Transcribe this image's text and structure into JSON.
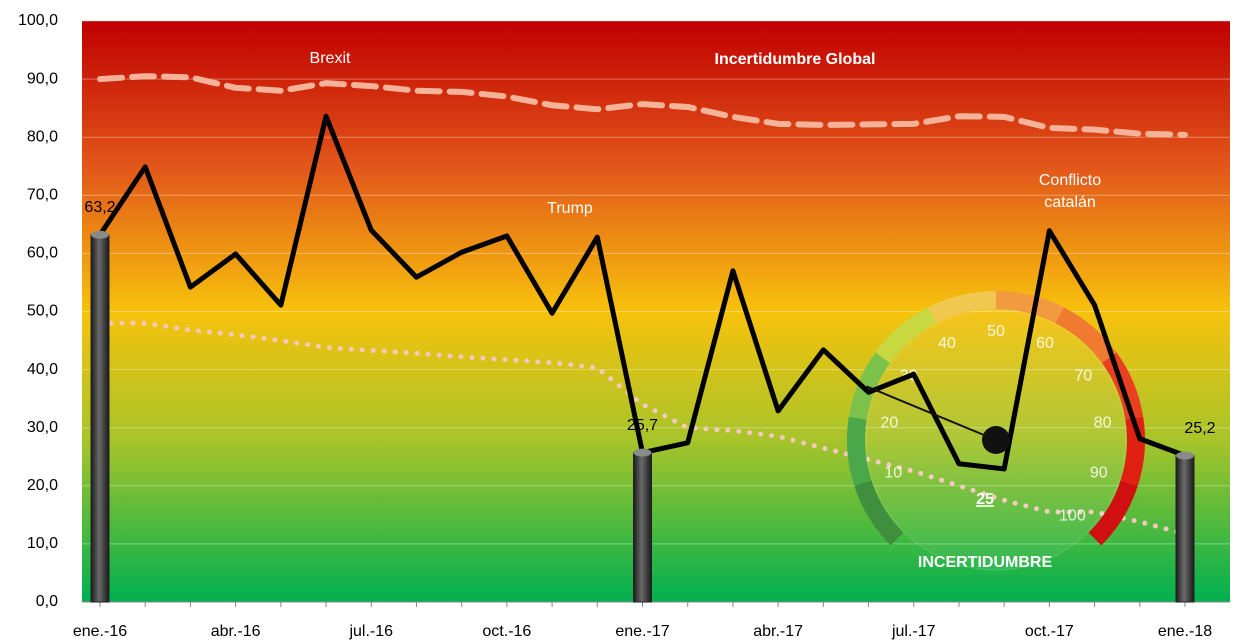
{
  "chart_data": {
    "type": "line",
    "title": "Incertidumbre Global",
    "annotations": [
      "Brexit",
      "Trump",
      "Conflicto catalán"
    ],
    "categories": [
      "ene.-16",
      null,
      null,
      "abr.-16",
      null,
      null,
      "jul.-16",
      null,
      null,
      "oct.-16",
      null,
      null,
      "ene.-17",
      null,
      null,
      "abr.-17",
      null,
      null,
      "jul.-17",
      null,
      null,
      "oct.-17",
      null,
      null,
      "ene.-18"
    ],
    "ylim": [
      0,
      100
    ],
    "yticks": [
      {
        "value": 0,
        "label": "0,0"
      },
      {
        "value": 10,
        "label": "10,0"
      },
      {
        "value": 20,
        "label": "20,0"
      },
      {
        "value": 30,
        "label": "30,0"
      },
      {
        "value": 40,
        "label": "40,0"
      },
      {
        "value": 50,
        "label": "50,0"
      },
      {
        "value": 60,
        "label": "60,0"
      },
      {
        "value": 70,
        "label": "70,0"
      },
      {
        "value": 80,
        "label": "80,0"
      },
      {
        "value": 90,
        "label": "90,0"
      },
      {
        "value": 100,
        "label": "100,0"
      }
    ],
    "grid": true,
    "series": [
      {
        "type": "bar",
        "color": "#3a3a3a",
        "values": [
          63.2,
          null,
          null,
          null,
          null,
          null,
          null,
          null,
          null,
          null,
          null,
          null,
          25.7,
          null,
          null,
          null,
          null,
          null,
          null,
          null,
          null,
          null,
          null,
          null,
          25.2
        ],
        "value_labels": [
          "63,2",
          null,
          null,
          null,
          null,
          null,
          null,
          null,
          null,
          null,
          null,
          null,
          "25,7",
          null,
          null,
          null,
          null,
          null,
          null,
          null,
          null,
          null,
          null,
          null,
          "25,2"
        ]
      },
      {
        "type": "line",
        "style": "dashed",
        "color": "#f5b49a",
        "values": [
          90,
          90.5,
          90.3,
          88.5,
          88,
          89.3,
          88.8,
          88,
          87.8,
          87,
          85.5,
          84.8,
          85.7,
          85.2,
          83.5,
          82.3,
          82.1,
          82.2,
          82.3,
          83.6,
          83.5,
          81.6,
          81.3,
          80.6,
          80.4
        ]
      },
      {
        "type": "line",
        "style": "dotted",
        "color": "#f8c8c0",
        "values": [
          48,
          48,
          46.8,
          46,
          45,
          43.8,
          43.3,
          42.8,
          42.2,
          41.7,
          41.2,
          40.3,
          34,
          30,
          29.5,
          28.5,
          26.5,
          24.5,
          22.5,
          20,
          17.5,
          15.5,
          15.5,
          13.8,
          11.7
        ]
      },
      {
        "type": "line",
        "style": "solid",
        "color": "#000000",
        "values": [
          63.2,
          74.9,
          54.2,
          59.9,
          51.1,
          83.6,
          64.0,
          55.9,
          60.2,
          63.0,
          49.7,
          62.8,
          25.7,
          27.4,
          57.0,
          32.9,
          43.4,
          36.1,
          39.2,
          23.8,
          22.9,
          63.9,
          51.1,
          28.1,
          25.2
        ]
      }
    ],
    "gauge": {
      "value": 25,
      "value_label": "25",
      "label": "INCERTIDUMBRE",
      "lim": [
        0,
        100
      ],
      "ticks": [
        10,
        20,
        30,
        40,
        50,
        60,
        70,
        80,
        90,
        100
      ]
    }
  }
}
